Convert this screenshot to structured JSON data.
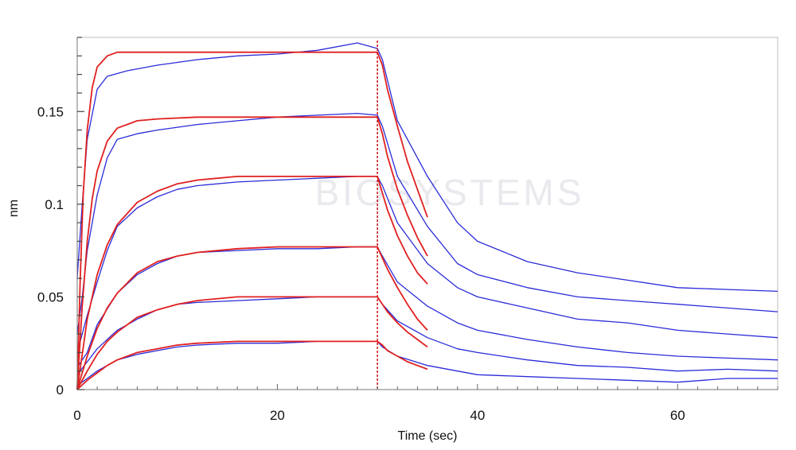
{
  "chart_data": {
    "type": "line",
    "title": "",
    "xlabel": "Time (sec)",
    "ylabel": "nm",
    "xlim": [
      0,
      70
    ],
    "ylim": [
      0,
      0.19
    ],
    "xticks": [
      0,
      20,
      40,
      60
    ],
    "xtick_labels": [
      "0",
      "20",
      "40",
      "60"
    ],
    "yticks": [
      0,
      0.05,
      0.1,
      0.15
    ],
    "ytick_labels": [
      "0",
      "0.05",
      "0.1",
      "0.15"
    ],
    "grid": false,
    "legend": "none",
    "association_end_time": 30,
    "dissociation_fit_end_time": 35,
    "watermark_text": "BIOSYSTEMS",
    "colors": {
      "measured": "#2b2bd9",
      "fit": "#e02020",
      "divider": "#cc1111"
    },
    "series": [
      {
        "kind": "measured",
        "x": [
          0,
          0.5,
          1,
          2,
          3,
          5,
          8,
          12,
          16,
          20,
          24,
          28,
          30,
          30.5,
          32,
          35,
          38,
          40,
          45,
          50,
          55,
          60,
          65,
          70
        ],
        "y": [
          0.06,
          0.1,
          0.135,
          0.162,
          0.169,
          0.172,
          0.175,
          0.178,
          0.18,
          0.181,
          0.183,
          0.187,
          0.184,
          0.178,
          0.145,
          0.115,
          0.09,
          0.08,
          0.069,
          0.063,
          0.059,
          0.055,
          0.054,
          0.053
        ]
      },
      {
        "kind": "measured",
        "x": [
          0,
          0.5,
          1,
          2,
          3,
          4,
          6,
          8,
          12,
          16,
          20,
          24,
          28,
          30,
          30.5,
          32,
          35,
          38,
          40,
          45,
          50,
          55,
          60,
          65,
          70
        ],
        "y": [
          0.03,
          0.05,
          0.075,
          0.105,
          0.125,
          0.135,
          0.138,
          0.14,
          0.143,
          0.145,
          0.147,
          0.148,
          0.149,
          0.148,
          0.142,
          0.115,
          0.088,
          0.068,
          0.062,
          0.055,
          0.05,
          0.048,
          0.046,
          0.044,
          0.042
        ]
      },
      {
        "kind": "measured",
        "x": [
          0,
          1,
          2,
          3,
          4,
          6,
          8,
          10,
          12,
          16,
          20,
          24,
          28,
          30,
          30.5,
          32,
          35,
          38,
          40,
          45,
          50,
          55,
          60,
          65,
          70
        ],
        "y": [
          0.02,
          0.04,
          0.058,
          0.075,
          0.088,
          0.098,
          0.104,
          0.108,
          0.11,
          0.112,
          0.113,
          0.114,
          0.115,
          0.115,
          0.11,
          0.09,
          0.068,
          0.055,
          0.05,
          0.044,
          0.038,
          0.036,
          0.032,
          0.03,
          0.028
        ]
      },
      {
        "kind": "measured",
        "x": [
          0,
          1,
          2,
          4,
          6,
          8,
          10,
          12,
          16,
          20,
          24,
          28,
          30,
          30.5,
          32,
          35,
          38,
          40,
          45,
          50,
          55,
          60,
          65,
          70
        ],
        "y": [
          0.012,
          0.02,
          0.035,
          0.052,
          0.062,
          0.068,
          0.072,
          0.074,
          0.075,
          0.076,
          0.076,
          0.077,
          0.077,
          0.072,
          0.058,
          0.045,
          0.036,
          0.032,
          0.027,
          0.023,
          0.02,
          0.018,
          0.017,
          0.016
        ]
      },
      {
        "kind": "measured",
        "x": [
          0,
          1,
          2,
          4,
          6,
          8,
          10,
          12,
          16,
          20,
          24,
          28,
          30,
          30.5,
          32,
          35,
          38,
          40,
          45,
          50,
          55,
          60,
          65,
          70
        ],
        "y": [
          0.008,
          0.015,
          0.022,
          0.032,
          0.038,
          0.043,
          0.046,
          0.047,
          0.048,
          0.049,
          0.05,
          0.05,
          0.05,
          0.046,
          0.037,
          0.028,
          0.022,
          0.02,
          0.016,
          0.013,
          0.012,
          0.01,
          0.011,
          0.01
        ]
      },
      {
        "kind": "measured",
        "x": [
          0,
          1,
          2,
          4,
          6,
          8,
          10,
          12,
          16,
          20,
          24,
          28,
          30,
          30.5,
          32,
          35,
          38,
          40,
          45,
          50,
          55,
          60,
          65,
          70
        ],
        "y": [
          0.002,
          0.006,
          0.01,
          0.016,
          0.019,
          0.021,
          0.023,
          0.024,
          0.025,
          0.025,
          0.026,
          0.026,
          0.026,
          0.023,
          0.018,
          0.013,
          0.01,
          0.008,
          0.007,
          0.006,
          0.005,
          0.004,
          0.006,
          0.006
        ]
      },
      {
        "kind": "fit",
        "x": [
          0,
          0.3,
          0.6,
          1,
          1.5,
          2,
          3,
          4,
          6,
          10,
          20,
          30,
          30.5,
          31,
          32,
          33,
          34,
          35
        ],
        "y": [
          0,
          0.06,
          0.105,
          0.14,
          0.163,
          0.174,
          0.18,
          0.182,
          0.182,
          0.182,
          0.182,
          0.182,
          0.175,
          0.162,
          0.142,
          0.123,
          0.108,
          0.093
        ]
      },
      {
        "kind": "fit",
        "x": [
          0,
          0.5,
          1,
          1.5,
          2,
          3,
          4,
          6,
          8,
          12,
          20,
          30,
          30.5,
          31,
          32,
          33,
          34,
          35
        ],
        "y": [
          0,
          0.045,
          0.08,
          0.103,
          0.118,
          0.134,
          0.141,
          0.145,
          0.146,
          0.147,
          0.147,
          0.147,
          0.138,
          0.126,
          0.108,
          0.094,
          0.082,
          0.072
        ]
      },
      {
        "kind": "fit",
        "x": [
          0,
          1,
          2,
          3,
          4,
          6,
          8,
          10,
          12,
          16,
          20,
          30,
          30.5,
          31,
          32,
          33,
          34,
          35
        ],
        "y": [
          0,
          0.038,
          0.062,
          0.078,
          0.089,
          0.101,
          0.107,
          0.111,
          0.113,
          0.115,
          0.115,
          0.115,
          0.106,
          0.097,
          0.083,
          0.072,
          0.063,
          0.057
        ]
      },
      {
        "kind": "fit",
        "x": [
          0,
          1,
          2,
          3,
          4,
          6,
          8,
          10,
          12,
          16,
          20,
          30,
          30.5,
          31,
          32,
          33,
          34,
          35
        ],
        "y": [
          0,
          0.018,
          0.033,
          0.044,
          0.052,
          0.063,
          0.069,
          0.072,
          0.074,
          0.076,
          0.077,
          0.077,
          0.071,
          0.065,
          0.055,
          0.046,
          0.038,
          0.032
        ]
      },
      {
        "kind": "fit",
        "x": [
          0,
          1,
          2,
          3,
          4,
          6,
          8,
          10,
          12,
          16,
          20,
          30,
          30.5,
          31,
          32,
          33,
          34,
          35
        ],
        "y": [
          0,
          0.01,
          0.019,
          0.026,
          0.031,
          0.039,
          0.043,
          0.046,
          0.048,
          0.05,
          0.05,
          0.05,
          0.046,
          0.042,
          0.036,
          0.031,
          0.027,
          0.023
        ]
      },
      {
        "kind": "fit",
        "x": [
          0,
          1,
          2,
          3,
          4,
          6,
          8,
          10,
          12,
          16,
          20,
          30,
          30.5,
          31,
          32,
          33,
          34,
          35
        ],
        "y": [
          0,
          0.005,
          0.009,
          0.013,
          0.016,
          0.02,
          0.022,
          0.024,
          0.025,
          0.026,
          0.026,
          0.026,
          0.024,
          0.021,
          0.018,
          0.015,
          0.013,
          0.011
        ]
      }
    ]
  }
}
